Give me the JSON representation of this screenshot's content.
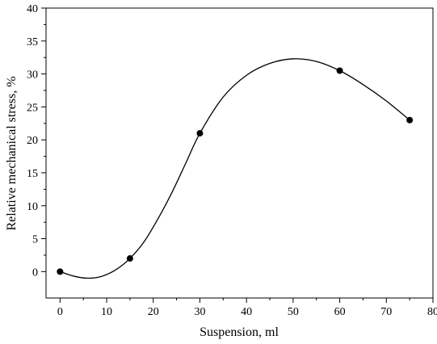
{
  "chart_data": {
    "type": "scatter",
    "xlabel": "Suspension, ml",
    "ylabel": "Relative mechanical stress, %",
    "xlim": [
      -3,
      80
    ],
    "ylim": [
      -4,
      40
    ],
    "x_ticks": [
      0,
      10,
      20,
      30,
      40,
      50,
      60,
      70,
      80
    ],
    "y_ticks": [
      0,
      5,
      10,
      15,
      20,
      25,
      30,
      35,
      40
    ],
    "grid": false,
    "series": [
      {
        "points": [
          {
            "x": 0,
            "y": 0
          },
          {
            "x": 15,
            "y": 2
          },
          {
            "x": 30,
            "y": 21
          },
          {
            "x": 60,
            "y": 30.5
          },
          {
            "x": 75,
            "y": 23
          }
        ],
        "marker_color": "#000000"
      },
      {
        "style": "smooth-curve",
        "line_color": "#000000",
        "points": [
          {
            "x": 0,
            "y": 0
          },
          {
            "x": 3,
            "y": -0.7
          },
          {
            "x": 6,
            "y": -1
          },
          {
            "x": 9,
            "y": -0.7
          },
          {
            "x": 12,
            "y": 0.3
          },
          {
            "x": 15,
            "y": 2
          },
          {
            "x": 18,
            "y": 4.5
          },
          {
            "x": 21,
            "y": 8
          },
          {
            "x": 24,
            "y": 12
          },
          {
            "x": 27,
            "y": 16.5
          },
          {
            "x": 30,
            "y": 21
          },
          {
            "x": 35,
            "y": 26.5
          },
          {
            "x": 40,
            "y": 29.8
          },
          {
            "x": 45,
            "y": 31.6
          },
          {
            "x": 50,
            "y": 32.3
          },
          {
            "x": 55,
            "y": 31.9
          },
          {
            "x": 60,
            "y": 30.5
          },
          {
            "x": 65,
            "y": 28.4
          },
          {
            "x": 70,
            "y": 25.9
          },
          {
            "x": 75,
            "y": 23
          }
        ]
      }
    ]
  }
}
